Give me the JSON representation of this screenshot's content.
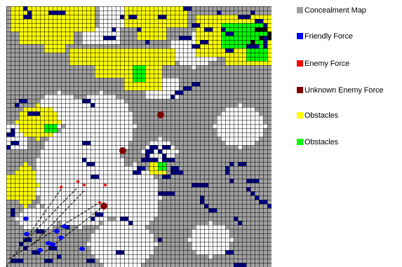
{
  "legend": {
    "items": [
      {
        "key": "concealment",
        "label": "Concealment Map",
        "color": "#a0a0a0"
      },
      {
        "key": "friendly",
        "label": "Friendly Force",
        "color": "#0000ff"
      },
      {
        "key": "enemy",
        "label": "Enemy Force",
        "color": "#ff0000"
      },
      {
        "key": "unknown_enemy",
        "label": "Unknown Enemy Force",
        "color": "#800000"
      },
      {
        "key": "obstacles_yellow",
        "label": "Obstacles",
        "color": "#ffff00"
      },
      {
        "key": "obstacles_green",
        "label": "Obstacles",
        "color": "#00ff00"
      }
    ]
  },
  "map": {
    "grid_columns": 63,
    "grid_rows": 62,
    "grid_line_color": "#000000",
    "colors": {
      "open": "#ffffff",
      "concealment": "#a0a0a0",
      "obstacle_yellow": "#ffff00",
      "obstacle_green": "#00ff00",
      "dark_cell": "#000080",
      "black_cell": "#000000",
      "friendly": "#0000ff",
      "enemy": "#ff0000",
      "unknown_enemy": "#800000",
      "sight_line": "#000000"
    }
  }
}
